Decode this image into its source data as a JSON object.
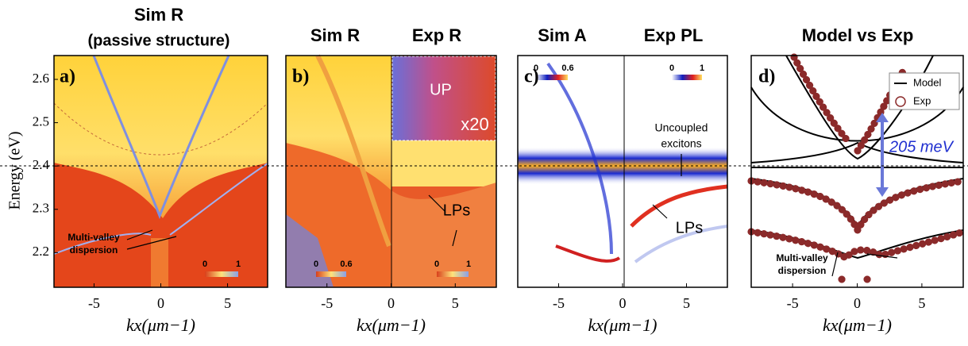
{
  "chart_data": [
    {
      "type": "heatmap",
      "titles": [
        "Sim R",
        "(passive structure)"
      ],
      "panel_label": "a)",
      "xlim": [
        -8,
        8
      ],
      "xticks": [
        -5,
        0,
        5
      ],
      "ylim": [
        2.12,
        2.655
      ],
      "yticks": [
        2.2,
        2.3,
        2.4,
        2.5,
        2.6
      ],
      "xlabel": "kx(μm−1)",
      "ylabel": "Energy (eV)",
      "annotations": [
        "Multi-valley",
        "dispersion"
      ],
      "colorbars": [
        {
          "min": 0,
          "max": 1
        }
      ]
    },
    {
      "type": "heatmap",
      "titles": [
        "Sim R",
        "Exp R"
      ],
      "panel_label": "b)",
      "xlim": [
        -8.2,
        8.2
      ],
      "xticks": [
        -5,
        0,
        5
      ],
      "ylim": [
        2.12,
        2.655
      ],
      "xlabel": "kx(μm−1)",
      "annotations": [
        "UP",
        "x20",
        "LPs"
      ],
      "colorbars": [
        {
          "min": 0,
          "max": 0.6
        },
        {
          "min": 0,
          "max": 1
        }
      ]
    },
    {
      "type": "heatmap",
      "titles": [
        "Sim A",
        "Exp PL"
      ],
      "panel_label": "c)",
      "xlim": [
        -8.2,
        8.2
      ],
      "xticks": [
        -5,
        0,
        5
      ],
      "ylim": [
        2.12,
        2.655
      ],
      "xlabel": "kx(μm−1)",
      "annotations": [
        "Uncoupled",
        "excitons",
        "LPs"
      ],
      "colorbars": [
        {
          "min": 0,
          "max": 0.6
        },
        {
          "min": 0,
          "max": 1
        }
      ]
    },
    {
      "type": "heatmap",
      "titles": [
        "Model vs Exp"
      ],
      "panel_label": "d)",
      "xlim": [
        -8.2,
        8.2
      ],
      "xticks": [
        -5,
        0,
        5
      ],
      "ylim": [
        2.12,
        2.655
      ],
      "xlabel": "kx(μm−1)",
      "annotations": [
        "205 meV",
        "Multi-valley",
        "dispersion"
      ],
      "legend": [
        "Model",
        "Exp"
      ]
    }
  ]
}
